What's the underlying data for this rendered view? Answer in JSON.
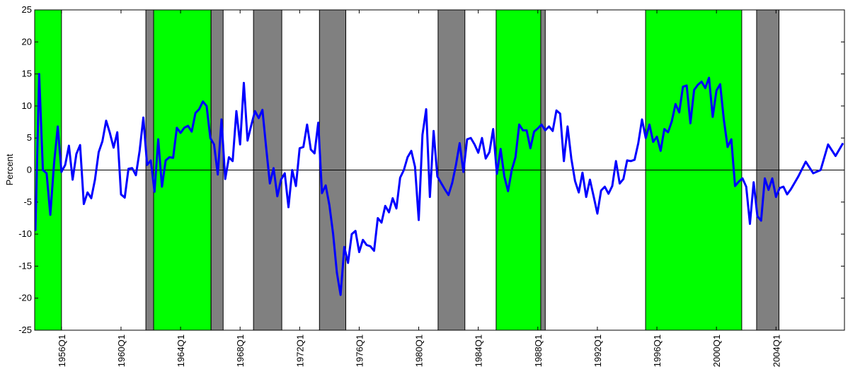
{
  "chart_data": {
    "type": "line",
    "ylabel": "Percent",
    "xlim": [
      1954.2,
      2008.6
    ],
    "ylim": [
      -25,
      25
    ],
    "yticks": [
      -25,
      -20,
      -15,
      -10,
      -5,
      0,
      5,
      10,
      15,
      20,
      25
    ],
    "xticks": [
      {
        "value": 1956,
        "label": "1956Q1"
      },
      {
        "value": 1960,
        "label": "1960Q1"
      },
      {
        "value": 1964,
        "label": "1964Q1"
      },
      {
        "value": 1968,
        "label": "1968Q1"
      },
      {
        "value": 1972,
        "label": "1972Q1"
      },
      {
        "value": 1976,
        "label": "1976Q1"
      },
      {
        "value": 1980,
        "label": "1980Q1"
      },
      {
        "value": 1984,
        "label": "1984Q1"
      },
      {
        "value": 1988,
        "label": "1988Q1"
      },
      {
        "value": 1992,
        "label": "1992Q1"
      },
      {
        "value": 1996,
        "label": "1996Q1"
      },
      {
        "value": 2000,
        "label": "2000Q1"
      },
      {
        "value": 2004,
        "label": "2004Q1"
      }
    ],
    "bands": [
      {
        "start": 1954.2,
        "end": 1956.0,
        "color": "#00ff00"
      },
      {
        "start": 1961.67,
        "end": 1962.19,
        "color": "#808080"
      },
      {
        "start": 1962.19,
        "end": 1966.05,
        "color": "#00ff00"
      },
      {
        "start": 1966.05,
        "end": 1966.86,
        "color": "#808080"
      },
      {
        "start": 1968.9,
        "end": 1970.8,
        "color": "#808080"
      },
      {
        "start": 1973.33,
        "end": 1975.1,
        "color": "#808080"
      },
      {
        "start": 1981.3,
        "end": 1983.1,
        "color": "#808080"
      },
      {
        "start": 1985.2,
        "end": 1988.2,
        "color": "#00ff00"
      },
      {
        "start": 1988.2,
        "end": 1988.5,
        "color": "#808080"
      },
      {
        "start": 1995.24,
        "end": 2001.7,
        "color": "#00ff00"
      },
      {
        "start": 2002.7,
        "end": 2004.2,
        "color": "#808080"
      }
    ],
    "series": [
      {
        "color": "#0000ff",
        "x": [
          1954.25,
          1954.5,
          1954.75,
          1955,
          1955.25,
          1955.5,
          1955.75,
          1956,
          1956.25,
          1956.5,
          1956.75,
          1957,
          1957.25,
          1957.5,
          1957.75,
          1958,
          1958.25,
          1958.5,
          1958.75,
          1959,
          1959.25,
          1959.5,
          1959.75,
          1960,
          1960.25,
          1960.5,
          1960.75,
          1961,
          1961.25,
          1961.5,
          1961.75,
          1962,
          1962.25,
          1962.5,
          1962.75,
          1963,
          1963.25,
          1963.5,
          1963.75,
          1964,
          1964.25,
          1964.5,
          1964.75,
          1965,
          1965.25,
          1965.5,
          1965.75,
          1966,
          1966.25,
          1966.5,
          1966.75,
          1967,
          1967.25,
          1967.5,
          1967.75,
          1968,
          1968.25,
          1968.5,
          1968.75,
          1969,
          1969.25,
          1969.5,
          1969.75,
          1970,
          1970.25,
          1970.5,
          1970.75,
          1971,
          1971.25,
          1971.5,
          1971.75,
          1972,
          1972.25,
          1972.5,
          1972.75,
          1973,
          1973.25,
          1973.5,
          1973.75,
          1974,
          1974.25,
          1974.5,
          1974.75,
          1975,
          1975.25,
          1975.5,
          1975.75,
          1976,
          1976.25,
          1976.5,
          1976.75,
          1977,
          1977.25,
          1977.5,
          1977.75,
          1978,
          1978.25,
          1978.5,
          1978.75,
          1979,
          1979.25,
          1979.5,
          1979.75,
          1980,
          1980.25,
          1980.5,
          1980.75,
          1981,
          1981.25,
          1981.5,
          1981.75,
          1982,
          1982.25,
          1982.5,
          1982.75,
          1983,
          1983.25,
          1983.5,
          1983.75,
          1984,
          1984.25,
          1984.5,
          1984.75,
          1985,
          1985.25,
          1985.5,
          1985.75,
          1986,
          1986.25,
          1986.5,
          1986.75,
          1987,
          1987.25,
          1987.5,
          1987.75,
          1988,
          1988.25,
          1988.5,
          1988.75,
          1989,
          1989.25,
          1989.5,
          1989.75,
          1990,
          1990.25,
          1990.5,
          1990.75,
          1991,
          1991.25,
          1991.5,
          1991.75,
          1992,
          1992.25,
          1992.5,
          1992.75,
          1993,
          1993.25,
          1993.5,
          1993.75,
          1994,
          1994.25,
          1994.5,
          1994.75,
          1995,
          1995.25,
          1995.5,
          1995.75,
          1996,
          1996.25,
          1996.5,
          1996.75,
          1997,
          1997.25,
          1997.5,
          1997.75,
          1998,
          1998.25,
          1998.5,
          1998.75,
          1999,
          1999.25,
          1999.5,
          1999.75,
          2000,
          2000.25,
          2000.5,
          2000.75,
          2001,
          2001.25,
          2001.5,
          2001.75,
          2002,
          2002.25,
          2002.5,
          2002.75,
          2003,
          2003.25,
          2003.5,
          2003.75,
          2004,
          2004.25,
          2004.5,
          2004.75,
          2005,
          2005.5,
          2006,
          2006.5,
          2007,
          2007.5,
          2008,
          2008.5
        ],
        "values": [
          -9.5,
          15,
          0,
          -0.5,
          -7,
          1,
          6.8,
          -0.3,
          0.8,
          3.8,
          -1.5,
          2.5,
          3.9,
          -5.3,
          -3.5,
          -4.4,
          -1.5,
          2.8,
          4.5,
          7.7,
          5.8,
          3.5,
          5.9,
          -3.8,
          -4.3,
          0.2,
          0.3,
          -0.8,
          3,
          8.2,
          0.8,
          1.5,
          -3.4,
          4.8,
          -2.6,
          1.5,
          2,
          1.9,
          6.6,
          5.8,
          6.6,
          6.9,
          6,
          8.9,
          9.5,
          10.7,
          10,
          5,
          4,
          -0.7,
          7.9,
          -1.4,
          2,
          1.4,
          9.2,
          4,
          13.6,
          4.6,
          7,
          9.2,
          8.1,
          9.4,
          3.5,
          -2.1,
          0.3,
          -4.1,
          -1.5,
          -0.5,
          -5.8,
          0,
          -2.5,
          3.4,
          3.6,
          7.1,
          3.2,
          2.6,
          7.4,
          -3.6,
          -2.4,
          -5.5,
          -10,
          -16,
          -19.5,
          -12,
          -14.5,
          -10,
          -9.5,
          -12.8,
          -10.9,
          -11.7,
          -11.9,
          -12.6,
          -7.5,
          -8.2,
          -5.6,
          -6.6,
          -4.4,
          -6,
          -1.2,
          0,
          2,
          3,
          0.5,
          -7.8,
          5.5,
          9.5,
          -4.2,
          6.1,
          -1,
          -2,
          -3,
          -3.9,
          -2,
          0.8,
          4.2,
          -0.3,
          4.8,
          5,
          4,
          2.7,
          5,
          1.8,
          2.8,
          6.4,
          -0.6,
          3.3,
          -1,
          -3.3,
          0,
          2,
          7.1,
          6.2,
          6.2,
          3.4,
          6,
          6.5,
          7.1,
          6.2,
          6.8,
          6.1,
          9.3,
          8.8,
          1.4,
          6.8,
          1.8,
          -1.7,
          -3.5,
          -0.4,
          -4.2,
          -1.5,
          -4.1,
          -6.8,
          -3.2,
          -2.6,
          -3.7,
          -2.5,
          1.4,
          -2.1,
          -1.4,
          1.5,
          1.4,
          1.6,
          4.2,
          7.9,
          5,
          7.1,
          4.4,
          5.2,
          3,
          6.4,
          5.9,
          7.6,
          10.3,
          9,
          13,
          13.2,
          7.3,
          12.5,
          13.3,
          13.8,
          12.8,
          14.4,
          8.3,
          12.4,
          13.4,
          7.8,
          3.6,
          4.8,
          -2.5,
          -1.8,
          -1.3,
          -2.6,
          -8.4,
          -1.9,
          -7.2,
          -7.9,
          -1.3,
          -3.1,
          -1.3,
          -4.2,
          -2.8,
          -2.6,
          -3.8,
          -3,
          -1,
          1.3,
          -0.5,
          0,
          4,
          2.2,
          4.2
        ]
      }
    ]
  }
}
